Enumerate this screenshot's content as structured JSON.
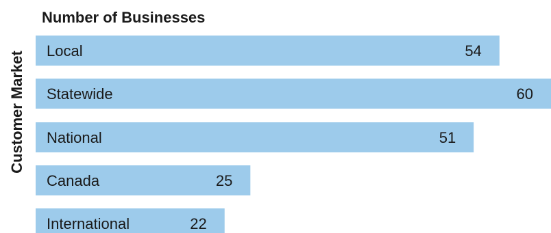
{
  "chart_data": {
    "type": "bar",
    "orientation": "horizontal",
    "title": "Number of Businesses",
    "ylabel": "Customer Market",
    "categories": [
      "Local",
      "Statewide",
      "National",
      "Canada",
      "International"
    ],
    "values": [
      54,
      60,
      51,
      25,
      22
    ],
    "bar_color": "#9dcbeb",
    "grid": false,
    "legend": "none"
  }
}
